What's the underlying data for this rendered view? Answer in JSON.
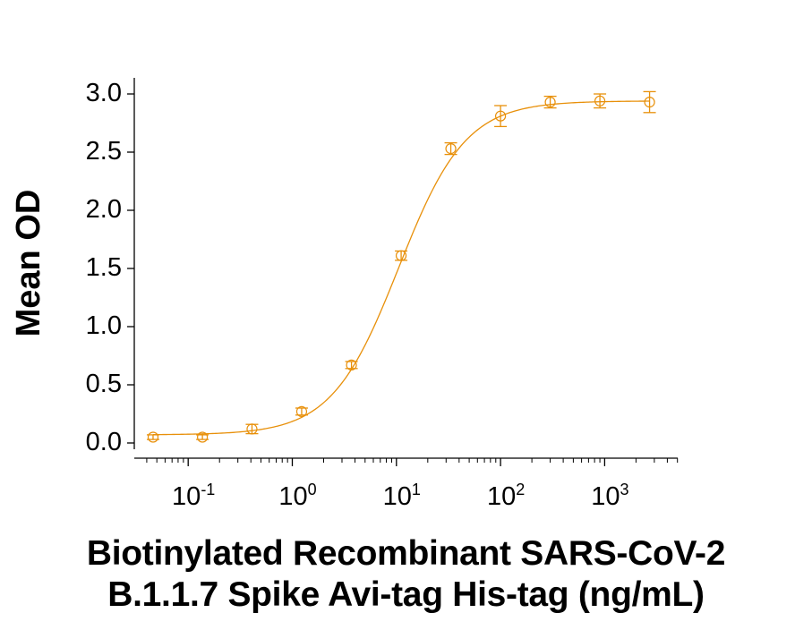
{
  "chart_data": {
    "type": "scatter",
    "title": "",
    "xlabel": "Biotinylated Recombinant SARS-CoV-2 B.1.1.7 Spike Avi-tag His-tag (ng/mL)",
    "xlabel_lines": [
      "Biotinylated Recombinant SARS-CoV-2",
      "B.1.1.7 Spike Avi-tag His-tag (ng/mL)"
    ],
    "ylabel": "Mean OD",
    "x_scale": "log",
    "xlim": [
      0.02,
      5000
    ],
    "ylim": [
      -0.05,
      3.1
    ],
    "x_ticks": [
      0.1,
      1,
      10,
      100,
      1000
    ],
    "x_tick_labels": [
      {
        "base": "10",
        "exp": "-1"
      },
      {
        "base": "10",
        "exp": "0"
      },
      {
        "base": "10",
        "exp": "1"
      },
      {
        "base": "10",
        "exp": "2"
      },
      {
        "base": "10",
        "exp": "3"
      }
    ],
    "y_ticks": [
      0.0,
      0.5,
      1.0,
      1.5,
      2.0,
      2.5,
      3.0
    ],
    "y_tick_labels": [
      "0.0",
      "0.5",
      "1.0",
      "1.5",
      "2.0",
      "2.5",
      "3.0"
    ],
    "grid": false,
    "legend": null,
    "series": [
      {
        "name": "Mean OD",
        "color": "#E8900A",
        "marker": "open-circle",
        "fit": "4-parameter logistic curve",
        "x": [
          0.046,
          0.137,
          0.41,
          1.23,
          3.7,
          11.1,
          33.3,
          100,
          300,
          900,
          2700
        ],
        "y": [
          0.05,
          0.05,
          0.12,
          0.27,
          0.67,
          1.61,
          2.53,
          2.81,
          2.93,
          2.94,
          2.93
        ],
        "error": [
          0.02,
          0.02,
          0.04,
          0.03,
          0.03,
          0.04,
          0.05,
          0.09,
          0.05,
          0.06,
          0.09
        ]
      }
    ]
  },
  "labels": {
    "ylabel": "Mean OD",
    "xlabel_line1": "Biotinylated Recombinant SARS-CoV-2",
    "xlabel_line2": "B.1.1.7 Spike Avi-tag His-tag (ng/mL)"
  }
}
